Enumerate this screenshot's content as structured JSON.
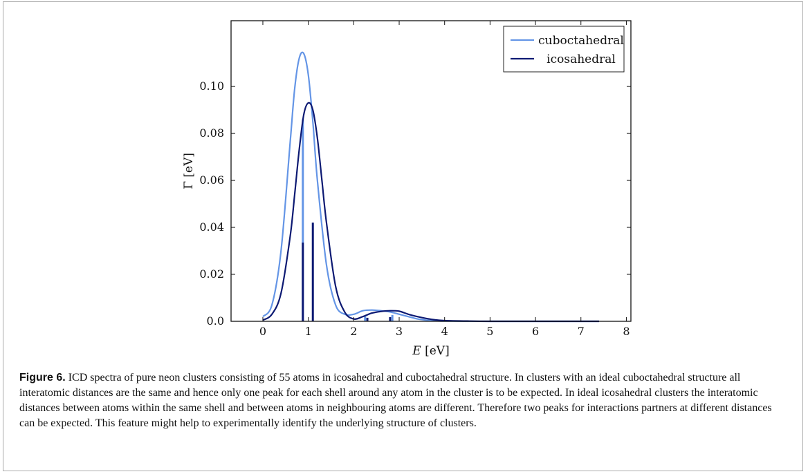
{
  "figure": {
    "label": "Figure 6.",
    "caption": "ICD spectra of pure neon clusters consisting of 55 atoms in icosahedral and cuboctahedral structure. In clusters with an ideal cuboctahedral structure all interatomic distances are the same and hence only one peak for each shell around any atom in the cluster is to be expected. In ideal icosahedral clusters the interatomic distances between atoms within the same shell and between atoms in neighbouring atoms are different. Therefore two peaks for interactions partners at different distances can be expected. This feature might help to experimentally identify the underlying structure of clusters."
  },
  "chart_data": {
    "type": "line",
    "xlabel": "E [eV]",
    "ylabel": "Γ [eV]",
    "xlim": [
      -0.7,
      8.1
    ],
    "ylim": [
      0,
      0.128
    ],
    "xticks": [
      0,
      1,
      2,
      3,
      4,
      5,
      6,
      7,
      8
    ],
    "yticks": [
      0.0,
      0.02,
      0.04,
      0.06,
      0.08,
      0.1
    ],
    "ytick_labels": [
      "0.0",
      "0.02",
      "0.04",
      "0.06",
      "0.08",
      "0.10"
    ],
    "legend_position": "top-right",
    "grid": false,
    "series": [
      {
        "name": "cuboctahedral",
        "color": "#6495e6",
        "x": [
          0.0,
          0.2,
          0.4,
          0.6,
          0.7,
          0.8,
          0.9,
          1.0,
          1.1,
          1.2,
          1.4,
          1.6,
          1.8,
          2.0,
          2.2,
          2.4,
          2.6,
          2.8,
          3.0,
          3.2,
          3.4,
          3.6,
          3.8,
          4.0,
          4.5,
          5.0,
          6.0,
          7.0,
          7.4
        ],
        "y": [
          0.002,
          0.007,
          0.03,
          0.076,
          0.099,
          0.112,
          0.114,
          0.105,
          0.085,
          0.06,
          0.024,
          0.007,
          0.003,
          0.003,
          0.0045,
          0.0048,
          0.0045,
          0.004,
          0.003,
          0.002,
          0.001,
          0.0005,
          0.0002,
          0.0001,
          0.0,
          0.0,
          0.0,
          0.0,
          0.0
        ]
      },
      {
        "name": "icosahedral",
        "color": "#0d1a73",
        "x": [
          0.0,
          0.2,
          0.4,
          0.6,
          0.7,
          0.8,
          0.9,
          1.0,
          1.1,
          1.2,
          1.3,
          1.4,
          1.6,
          1.8,
          2.0,
          2.2,
          2.4,
          2.6,
          2.8,
          3.0,
          3.2,
          3.4,
          3.6,
          3.8,
          4.0,
          4.5,
          5.0,
          6.0,
          7.0,
          7.4
        ],
        "y": [
          0.0005,
          0.003,
          0.012,
          0.036,
          0.054,
          0.073,
          0.088,
          0.093,
          0.09,
          0.078,
          0.06,
          0.042,
          0.015,
          0.004,
          0.001,
          0.002,
          0.0035,
          0.0042,
          0.0045,
          0.0043,
          0.003,
          0.002,
          0.0012,
          0.0006,
          0.0003,
          0.0001,
          0.0,
          0.0,
          0.0,
          0.0
        ]
      }
    ],
    "stick_series": [
      {
        "name": "cuboctahedral",
        "color": "#6495e6",
        "x": [
          0.88,
          2.25,
          2.85
        ],
        "y": [
          0.086,
          0.002,
          0.0027
        ]
      },
      {
        "name": "icosahedral",
        "color": "#0d1a73",
        "x": [
          0.88,
          1.1,
          2.3,
          2.8
        ],
        "y": [
          0.0335,
          0.042,
          0.0015,
          0.0018
        ]
      }
    ]
  }
}
